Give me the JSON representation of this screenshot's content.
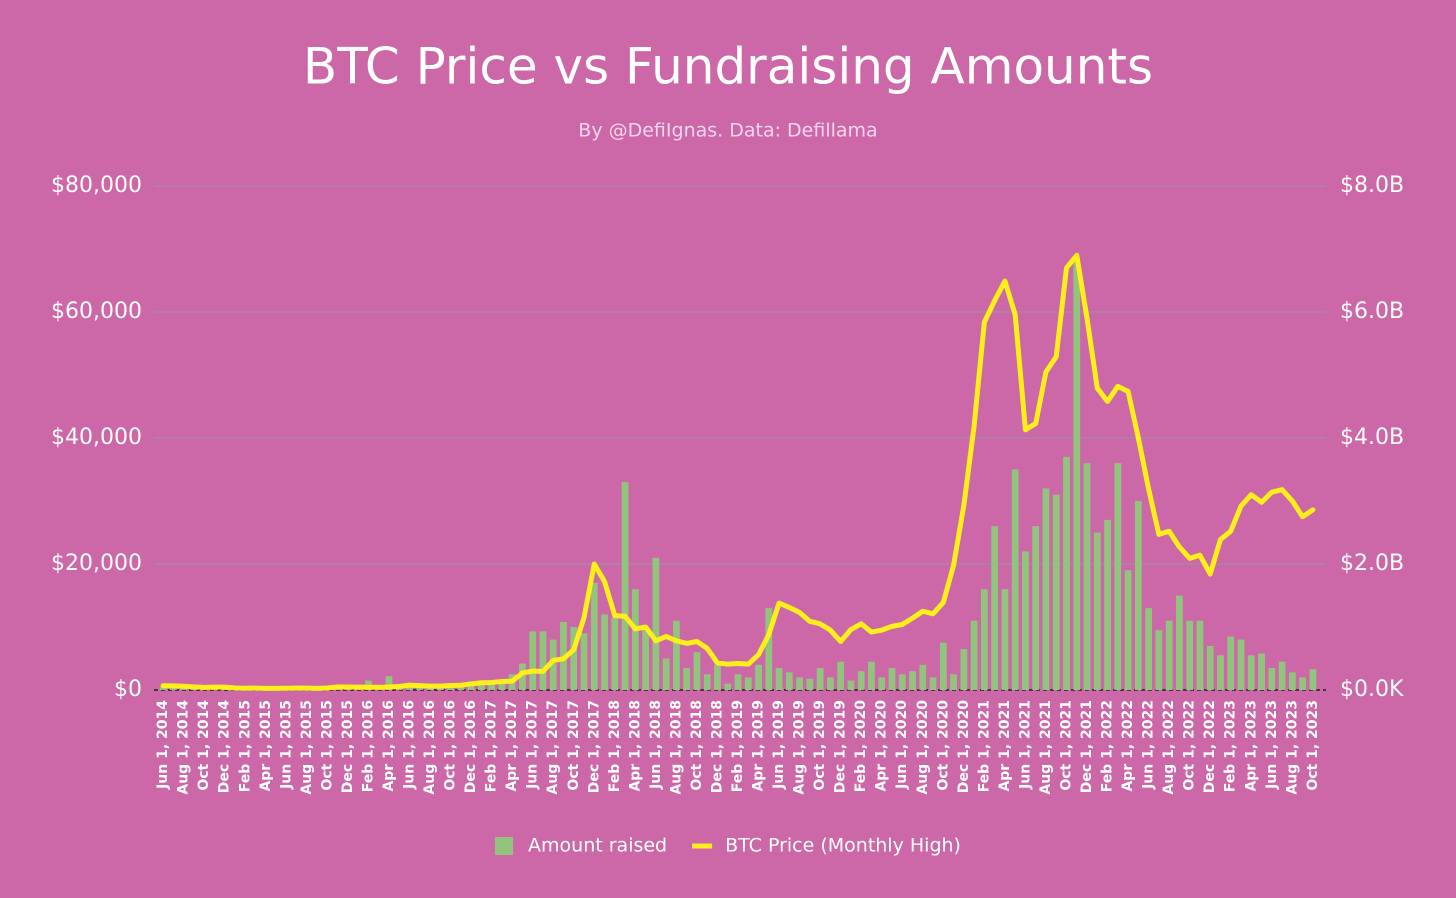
{
  "chart_data": {
    "type": "combo",
    "title": "BTC Price vs Fundraising Amounts",
    "subtitle": "By @DefiIgnas. Data: Defillama",
    "categories": [
      "Jun 1, 2014",
      null,
      "Aug 1, 2014",
      null,
      "Oct 1, 2014",
      null,
      "Dec 1, 2014",
      null,
      "Feb 1, 2015",
      null,
      "Apr 1, 2015",
      null,
      "Jun 1, 2015",
      null,
      "Aug 1, 2015",
      null,
      "Oct 1, 2015",
      null,
      "Dec 1, 2015",
      null,
      "Feb 1, 2016",
      null,
      "Apr 1, 2016",
      null,
      "Jun 1, 2016",
      null,
      "Aug 1, 2016",
      null,
      "Oct 1, 2016",
      null,
      "Dec 1, 2016",
      null,
      "Feb 1, 2017",
      null,
      "Apr 1, 2017",
      null,
      "Jun 1, 2017",
      null,
      "Aug 1, 2017",
      null,
      "Oct 1, 2017",
      null,
      "Dec 1, 2017",
      null,
      "Feb 1, 2018",
      null,
      "Apr 1, 2018",
      null,
      "Jun 1, 2018",
      null,
      "Aug 1, 2018",
      null,
      "Oct 1, 2018",
      null,
      "Dec 1, 2018",
      null,
      "Feb 1, 2019",
      null,
      "Apr 1, 2019",
      null,
      "Jun 1, 2019",
      null,
      "Aug 1, 2019",
      null,
      "Oct 1, 2019",
      null,
      "Dec 1, 2019",
      null,
      "Feb 1, 2020",
      null,
      "Apr 1, 2020",
      null,
      "Jun 1, 2020",
      null,
      "Aug 1, 2020",
      null,
      "Oct 1, 2020",
      null,
      "Dec 1, 2020",
      null,
      "Feb 1, 2021",
      null,
      "Apr 1, 2021",
      null,
      "Jun 1, 2021",
      null,
      "Aug 1, 2021",
      null,
      "Oct 1, 2021",
      null,
      "Dec 1, 2021",
      null,
      "Feb 1, 2022",
      null,
      "Apr 1, 2022",
      null,
      "Jun 1, 2022",
      null,
      "Aug 1, 2022",
      null,
      "Oct 1, 2022",
      null,
      "Dec 1, 2022",
      null,
      "Feb 1, 2023",
      null,
      "Apr 1, 2023",
      null,
      "Jun 1, 2023",
      null,
      "Aug 1, 2023",
      null,
      "Oct 1, 2023"
    ],
    "series": [
      {
        "name": "Amount raised",
        "type": "bar",
        "axis": "y2",
        "color": "#93c47d",
        "values": [
          0.05,
          0.03,
          0.04,
          0.02,
          0.03,
          0.02,
          0.03,
          0.03,
          0.02,
          0.03,
          0.02,
          0.02,
          0.03,
          0.02,
          0.03,
          0.02,
          0.04,
          0.03,
          0.05,
          0.06,
          0.15,
          0.04,
          0.22,
          0.05,
          0.06,
          0.05,
          0.04,
          0.06,
          0.05,
          0.07,
          0.06,
          0.08,
          0.1,
          0.15,
          0.25,
          0.42,
          0.93,
          0.93,
          0.8,
          1.08,
          1.0,
          0.9,
          1.7,
          1.2,
          1.15,
          3.3,
          1.6,
          1.0,
          2.1,
          0.5,
          1.1,
          0.35,
          0.6,
          0.25,
          0.4,
          0.1,
          0.25,
          0.2,
          0.4,
          1.3,
          0.35,
          0.28,
          0.2,
          0.18,
          0.35,
          0.2,
          0.45,
          0.15,
          0.3,
          0.45,
          0.2,
          0.35,
          0.25,
          0.3,
          0.4,
          0.2,
          0.75,
          0.25,
          0.65,
          1.1,
          1.6,
          2.6,
          1.6,
          3.5,
          2.2,
          2.6,
          3.2,
          3.1,
          3.7,
          6.8,
          3.6,
          2.5,
          2.7,
          3.6,
          1.9,
          3.0,
          1.3,
          0.95,
          1.1,
          1.5,
          1.1,
          1.1,
          0.7,
          0.55,
          0.85,
          0.8,
          0.55,
          0.58,
          0.35,
          0.45,
          0.28,
          0.2,
          0.33
        ]
      },
      {
        "name": "BTC Price (Monthly High)",
        "type": "line",
        "color": "#ffef1a",
        "values": [
          680,
          650,
          600,
          500,
          420,
          460,
          450,
          320,
          280,
          300,
          260,
          250,
          270,
          310,
          290,
          250,
          320,
          500,
          470,
          460,
          440,
          430,
          470,
          550,
          780,
          700,
          620,
          620,
          720,
          760,
          980,
          1150,
          1200,
          1350,
          1400,
          2700,
          3000,
          2950,
          4700,
          4950,
          6400,
          11500,
          20000,
          17200,
          11800,
          11700,
          9700,
          10000,
          7800,
          8500,
          7800,
          7400,
          7700,
          6600,
          4300,
          4100,
          4200,
          4100,
          5600,
          8800,
          13800,
          13100,
          12300,
          10900,
          10500,
          9500,
          7700,
          9600,
          10500,
          9200,
          9500,
          10100,
          10400,
          11400,
          12500,
          12100,
          13900,
          19800,
          29300,
          41900,
          58400,
          61800,
          64900,
          59600,
          41300,
          42300,
          50500,
          52900,
          67000,
          69000,
          59000,
          47900,
          45800,
          48200,
          47400,
          40000,
          31900,
          24700,
          25200,
          22700,
          20900,
          21400,
          18400,
          23900,
          25200,
          29200,
          31000,
          29800,
          31400,
          31800,
          30000,
          27500,
          28600
        ]
      }
    ],
    "ylim": [
      0,
      80000
    ],
    "yticks": [
      {
        "value": 0,
        "label": "$0"
      },
      {
        "value": 20000,
        "label": "$20,000"
      },
      {
        "value": 40000,
        "label": "$40,000"
      },
      {
        "value": 60000,
        "label": "$60,000"
      },
      {
        "value": 80000,
        "label": "$80,000"
      }
    ],
    "y2lim": [
      0,
      8
    ],
    "y2ticks": [
      {
        "value": 0,
        "label": "$0.0K"
      },
      {
        "value": 2,
        "label": "$2.0B"
      },
      {
        "value": 4,
        "label": "$4.0B"
      },
      {
        "value": 6,
        "label": "$6.0B"
      },
      {
        "value": 8,
        "label": "$8.0B"
      }
    ],
    "grid": true,
    "legend": "bottom"
  }
}
